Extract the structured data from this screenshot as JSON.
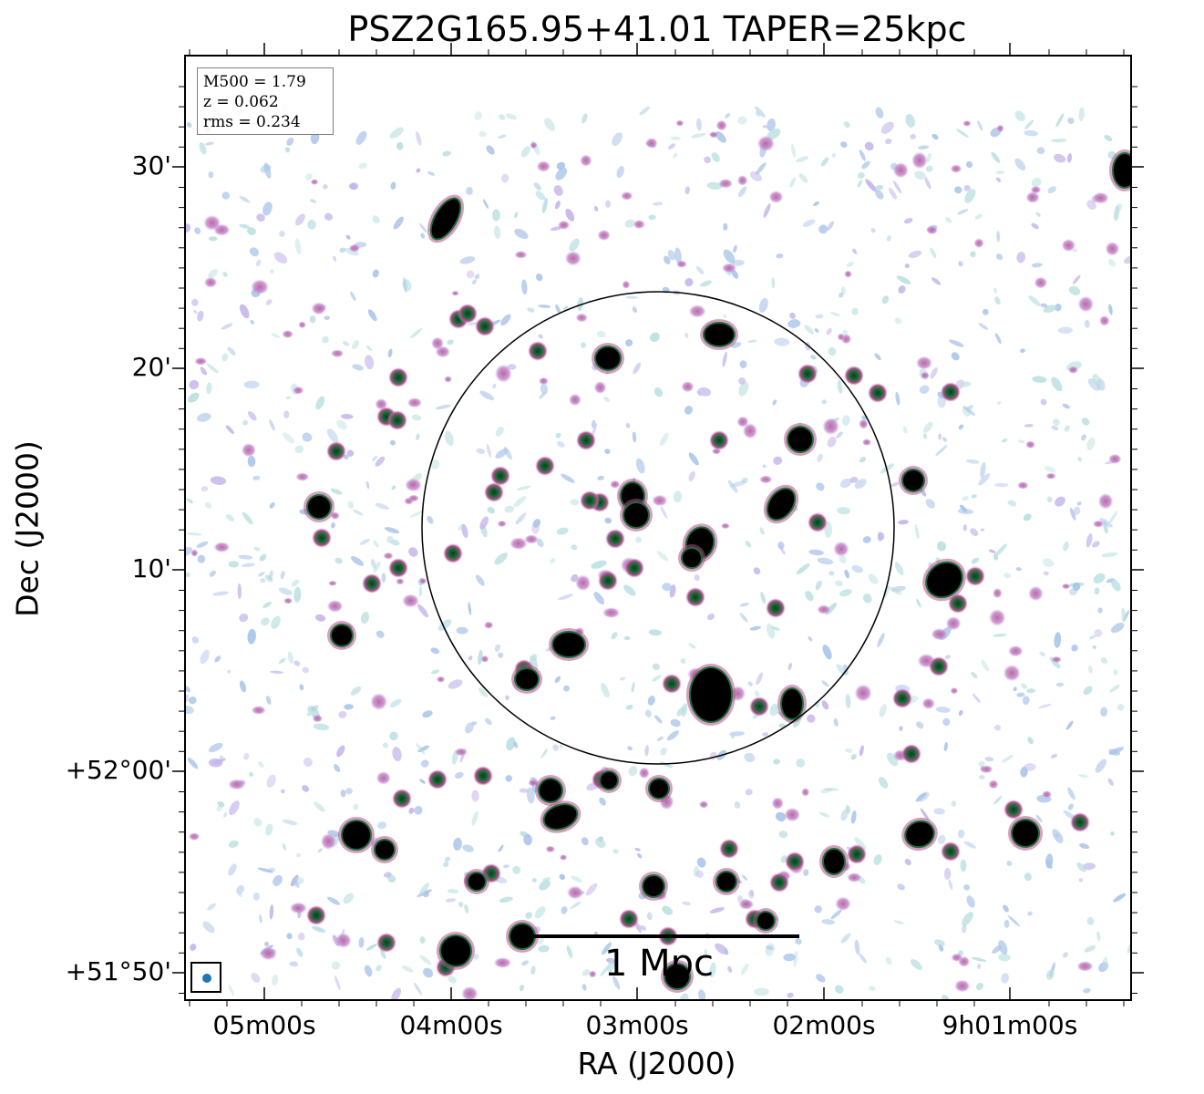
{
  "title": "PSZ2G165.95+41.01 TAPER=25kpc",
  "xlabel": "RA (J2000)",
  "ylabel": "Dec (J2000)",
  "legend": {
    "mass": "M500 = 1.79",
    "redshift": "z = 0.062",
    "rms": "rms = 0.234"
  },
  "scalebar": {
    "label": "1 Mpc"
  },
  "x_ticks": [
    "05m00s",
    "04m00s",
    "03m00s",
    "02m00s",
    "9h01m00s"
  ],
  "y_ticks": [
    "30'",
    "20'",
    "10'",
    "+52°00'",
    "+51°50'"
  ],
  "colors": {
    "bright_source": "#000000",
    "core_green": "#1e6b3a",
    "halo_magenta": "#b0508a",
    "faint_blue": "#a9c4e8",
    "faint_cyan": "#b9dfe0",
    "circle": "#000000",
    "beam": "#1f77b4"
  }
}
